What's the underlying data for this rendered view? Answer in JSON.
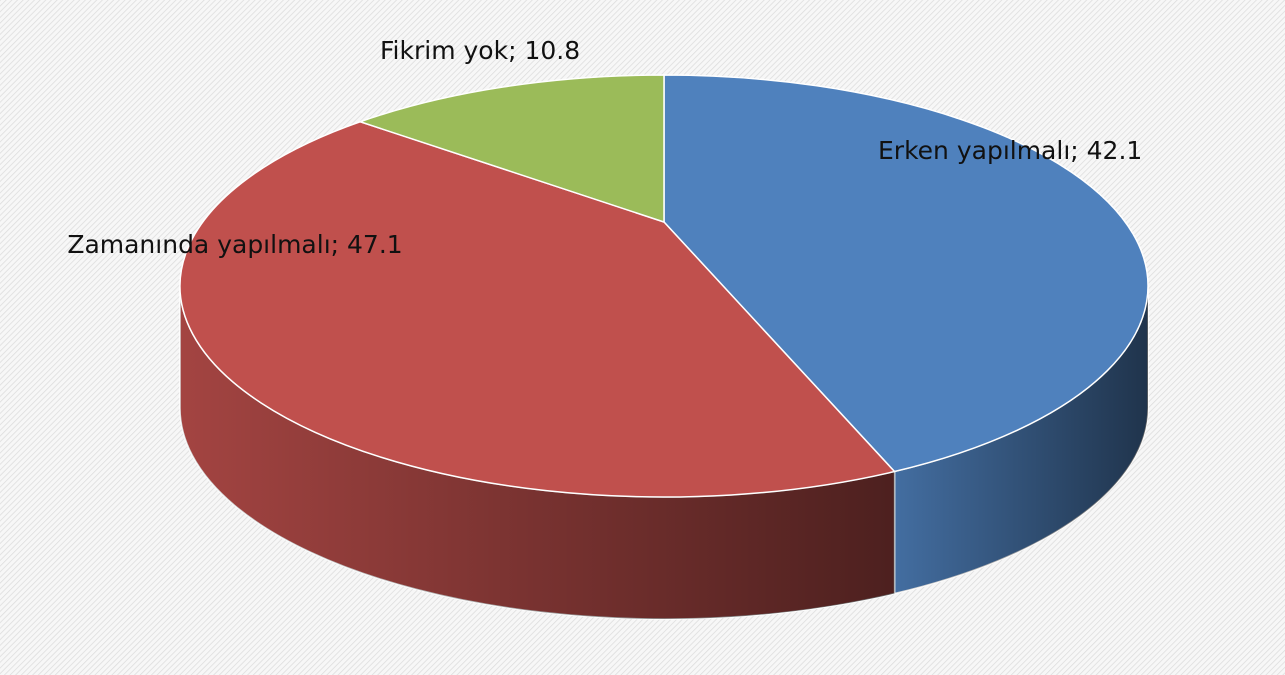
{
  "chart_data": {
    "type": "pie3d",
    "categories": [
      "Erken yapılmalı",
      "Zamanında yapılmalı",
      "Fikrim yok"
    ],
    "values": [
      42.1,
      47.1,
      10.8
    ],
    "value_labels": [
      "Erken yapılmalı; 42.1",
      "Zamanında yapılmalı; 47.1",
      "Fikrim yok; 10.8"
    ],
    "colors": [
      "#4f81bd",
      "#c0504d",
      "#9bbb59"
    ]
  }
}
